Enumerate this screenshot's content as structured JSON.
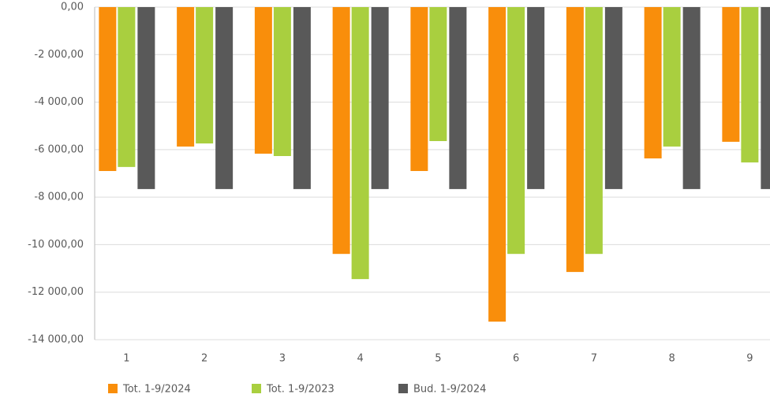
{
  "chart_data": {
    "type": "bar",
    "categories": [
      "1",
      "2",
      "3",
      "4",
      "5",
      "6",
      "7",
      "8",
      "9"
    ],
    "series": [
      {
        "name": "Tot. 1-9/2024",
        "color": "#f98e0b",
        "values": [
          -6900,
          -5870,
          -6170,
          -10390,
          -6900,
          -13240,
          -11150,
          -6370,
          -5670
        ]
      },
      {
        "name": "Tot. 1-9/2023",
        "color": "#a9cf3f",
        "values": [
          -6730,
          -5740,
          -6270,
          -11450,
          -5640,
          -10390,
          -10390,
          -5870,
          -6540
        ]
      },
      {
        "name": "Bud. 1-9/2024",
        "color": "#595959",
        "values": [
          -7660,
          -7660,
          -7660,
          -7660,
          -7660,
          -7660,
          -7660,
          -7660,
          -7660
        ]
      }
    ],
    "ylim": [
      -14000,
      0
    ],
    "yticks": [
      {
        "value": 0,
        "label": "0,00"
      },
      {
        "value": -2000,
        "label": "-2 000,00"
      },
      {
        "value": -4000,
        "label": "-4 000,00"
      },
      {
        "value": -6000,
        "label": "-6 000,00"
      },
      {
        "value": -8000,
        "label": "-8 000,00"
      },
      {
        "value": -10000,
        "label": "-10 000,00"
      },
      {
        "value": -12000,
        "label": "-12 000,00"
      },
      {
        "value": -14000,
        "label": "-14 000,00"
      }
    ],
    "grid": true,
    "legend": "bottom"
  }
}
